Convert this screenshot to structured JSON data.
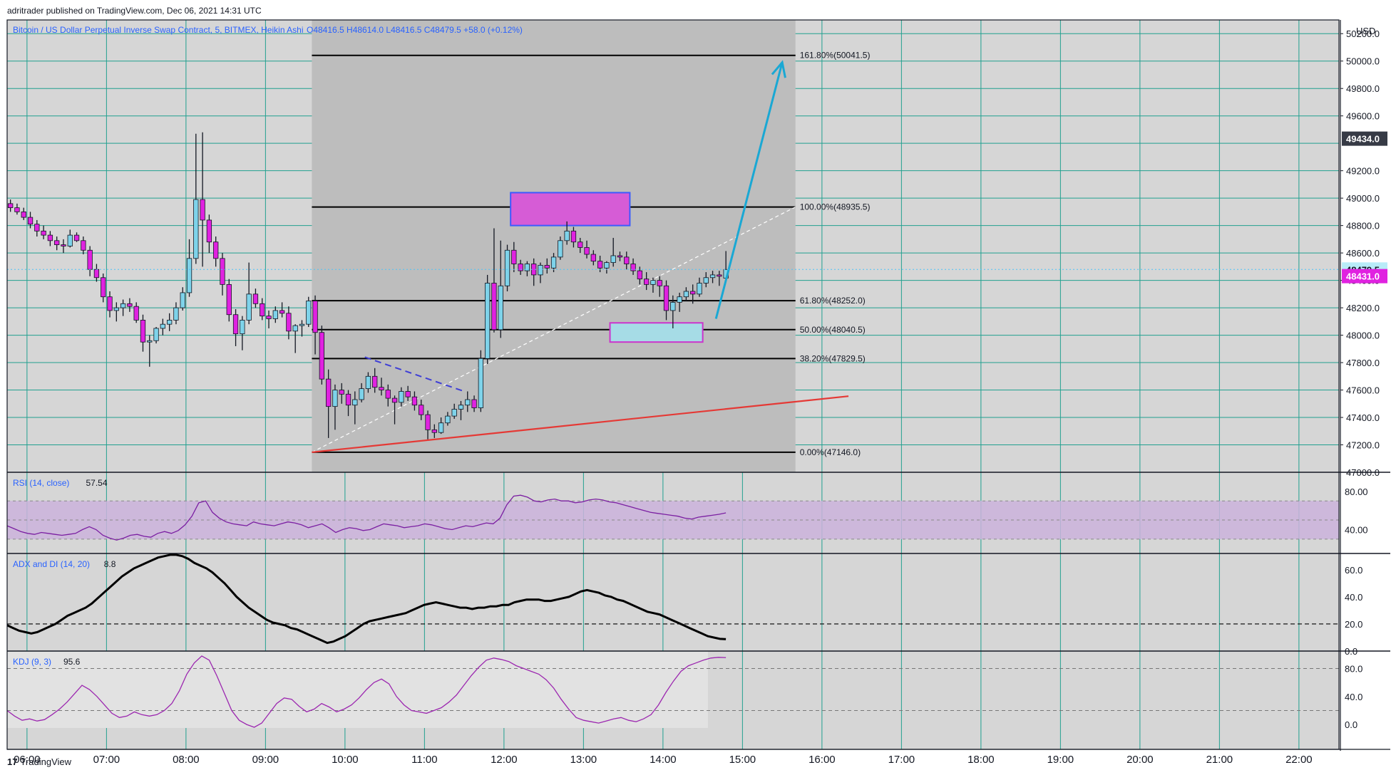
{
  "header": {
    "published": "adritrader published on TradingView.com, Dec 06, 2021 14:31 UTC"
  },
  "footer": {
    "brand": "TradingView",
    "logo": "17"
  },
  "colors": {
    "bg": "#d6d6d6",
    "zone": "#bdbdbd",
    "grid": "#21a08f",
    "up": "#7ed3ea",
    "down": "#e022e0",
    "wick": "#131722",
    "trend": "#e53935",
    "arrow": "#1aa8d4",
    "rsi_band": "#cbb3dc",
    "rsi_line": "#7b1fa2",
    "kdj_line": "#9c27b0",
    "adx_line": "#000000",
    "tag_current": "#e022e0",
    "tag_last": "#b8ecf8",
    "tag_dark": "#363a45"
  },
  "chart_data": [
    {
      "type": "candlestick",
      "title": "Bitcoin / US Dollar Perpetual Inverse Swap Contract, 5, BITMEX, Heikin Ashi",
      "ohlc_text": "O48416.5  H48614.0  L48416.5  C48479.5  +58.0 (+0.12%)",
      "currency": "USD",
      "ylim": [
        47000,
        50300
      ],
      "y_ticks": [
        "47000.0",
        "47200.0",
        "47400.0",
        "47600.0",
        "47800.0",
        "48000.0",
        "48200.0",
        "48400.0",
        "48600.0",
        "48800.0",
        "49000.0",
        "49200.0",
        "49600.0",
        "49800.0",
        "50000.0",
        "50200.0"
      ],
      "x_ticks": [
        "06:00",
        "07:00",
        "08:00",
        "09:00",
        "10:00",
        "11:00",
        "12:00",
        "13:00",
        "14:00",
        "15:00",
        "16:00",
        "17:00",
        "18:00",
        "19:00",
        "20:00",
        "21:00",
        "22:00"
      ],
      "x_start": "05:45",
      "bar_minutes": 5,
      "price_tags": [
        {
          "label": "49434.0",
          "value": 49434.0,
          "style": "dark"
        },
        {
          "label": "48479.5",
          "value": 48479.5,
          "style": "last"
        },
        {
          "label": "48431.0",
          "value": 48431.0,
          "style": "current"
        }
      ],
      "fib_levels": [
        {
          "label": "161.80%(50041.5)",
          "price": 50041.5
        },
        {
          "label": "100.00%(48935.5)",
          "price": 48935.5
        },
        {
          "label": "61.80%(48252.0)",
          "price": 48252.0
        },
        {
          "label": "50.00%(48040.5)",
          "price": 48040.5
        },
        {
          "label": "38.20%(47829.5)",
          "price": 47829.5
        },
        {
          "label": "0.00%(47146.0)",
          "price": 47146.0
        }
      ],
      "fib_zone": {
        "start": "09:35",
        "end": "15:40"
      },
      "annotations": {
        "supply_box": {
          "t1": "12:05",
          "t2": "13:35",
          "p1": 49040,
          "p2": 48800
        },
        "demand_box": {
          "t1": "13:20",
          "t2": "14:30",
          "p1": 48090,
          "p2": 47950
        },
        "trendline": {
          "t1": "09:35",
          "p1": 47146,
          "t2": "16:20",
          "p2": 47555
        },
        "dashed_line": {
          "t1": "10:15",
          "p1": 47840,
          "t2": "11:30",
          "p2": 47590
        },
        "diagonal": {
          "t1": "09:35",
          "p1": 47146,
          "t2": "15:40",
          "p2": 48935.5
        },
        "arrow": {
          "t1": "14:40",
          "p1": 48120,
          "t2": "15:30",
          "p2": 49990
        }
      },
      "candles": [
        [
          48960,
          48990,
          48900,
          48930
        ],
        [
          48930,
          48960,
          48880,
          48900
        ],
        [
          48900,
          48930,
          48840,
          48860
        ],
        [
          48860,
          48900,
          48780,
          48810
        ],
        [
          48810,
          48840,
          48720,
          48760
        ],
        [
          48760,
          48800,
          48700,
          48730
        ],
        [
          48730,
          48760,
          48650,
          48690
        ],
        [
          48690,
          48720,
          48620,
          48660
        ],
        [
          48660,
          48700,
          48600,
          48650
        ],
        [
          48650,
          48770,
          48640,
          48730
        ],
        [
          48730,
          48750,
          48680,
          48690
        ],
        [
          48690,
          48720,
          48590,
          48620
        ],
        [
          48620,
          48650,
          48430,
          48480
        ],
        [
          48480,
          48520,
          48390,
          48420
        ],
        [
          48420,
          48450,
          48240,
          48280
        ],
        [
          48280,
          48320,
          48130,
          48180
        ],
        [
          48180,
          48240,
          48100,
          48200
        ],
        [
          48200,
          48260,
          48140,
          48230
        ],
        [
          48230,
          48270,
          48170,
          48210
        ],
        [
          48210,
          48240,
          48090,
          48110
        ],
        [
          48110,
          48150,
          47880,
          47950
        ],
        [
          47950,
          48000,
          47770,
          47960
        ],
        [
          47960,
          48060,
          47940,
          48050
        ],
        [
          48050,
          48120,
          48000,
          48080
        ],
        [
          48080,
          48160,
          48030,
          48110
        ],
        [
          48110,
          48240,
          48080,
          48200
        ],
        [
          48200,
          48350,
          48180,
          48310
        ],
        [
          48310,
          48700,
          48280,
          48560
        ],
        [
          48560,
          49470,
          48520,
          48990
        ],
        [
          48990,
          49480,
          48500,
          48840
        ],
        [
          48840,
          48880,
          48600,
          48680
        ],
        [
          48680,
          48720,
          48500,
          48560
        ],
        [
          48560,
          48600,
          48290,
          48370
        ],
        [
          48370,
          48410,
          48100,
          48150
        ],
        [
          48150,
          48190,
          47920,
          48010
        ],
        [
          48010,
          48140,
          47890,
          48110
        ],
        [
          48110,
          48530,
          48080,
          48300
        ],
        [
          48300,
          48340,
          48200,
          48230
        ],
        [
          48230,
          48270,
          48110,
          48140
        ],
        [
          48140,
          48180,
          48050,
          48120
        ],
        [
          48120,
          48210,
          48090,
          48180
        ],
        [
          48180,
          48240,
          48130,
          48160
        ],
        [
          48160,
          48210,
          47970,
          48030
        ],
        [
          48030,
          48080,
          47870,
          48070
        ],
        [
          48070,
          48110,
          47990,
          48080
        ],
        [
          48080,
          48280,
          48060,
          48250
        ],
        [
          48250,
          48290,
          47860,
          48020
        ],
        [
          48020,
          48070,
          47640,
          47680
        ],
        [
          47680,
          47750,
          47250,
          47480
        ],
        [
          47480,
          47640,
          47310,
          47600
        ],
        [
          47600,
          47650,
          47500,
          47570
        ],
        [
          47570,
          47600,
          47410,
          47490
        ],
        [
          47490,
          47590,
          47350,
          47530
        ],
        [
          47530,
          47650,
          47510,
          47610
        ],
        [
          47610,
          47730,
          47580,
          47700
        ],
        [
          47700,
          47760,
          47580,
          47620
        ],
        [
          47620,
          47690,
          47560,
          47600
        ],
        [
          47600,
          47640,
          47480,
          47540
        ],
        [
          47540,
          47560,
          47350,
          47510
        ],
        [
          47510,
          47620,
          47480,
          47590
        ],
        [
          47590,
          47630,
          47520,
          47550
        ],
        [
          47550,
          47590,
          47450,
          47490
        ],
        [
          47490,
          47530,
          47380,
          47420
        ],
        [
          47420,
          47450,
          47240,
          47310
        ],
        [
          47310,
          47350,
          47250,
          47290
        ],
        [
          47290,
          47400,
          47280,
          47360
        ],
        [
          47360,
          47440,
          47340,
          47410
        ],
        [
          47410,
          47500,
          47390,
          47460
        ],
        [
          47460,
          47520,
          47380,
          47490
        ],
        [
          47490,
          47590,
          47440,
          47530
        ],
        [
          47530,
          47560,
          47440,
          47470
        ],
        [
          47470,
          47890,
          47440,
          47830
        ],
        [
          47830,
          48440,
          47790,
          48380
        ],
        [
          48380,
          48780,
          48020,
          48040
        ],
        [
          48040,
          48690,
          47980,
          48360
        ],
        [
          48360,
          48660,
          48320,
          48620
        ],
        [
          48620,
          48680,
          48460,
          48520
        ],
        [
          48520,
          48550,
          48440,
          48470
        ],
        [
          48470,
          48540,
          48430,
          48520
        ],
        [
          48520,
          48560,
          48360,
          48440
        ],
        [
          48440,
          48530,
          48380,
          48510
        ],
        [
          48510,
          48560,
          48450,
          48490
        ],
        [
          48490,
          48600,
          48460,
          48570
        ],
        [
          48570,
          48720,
          48550,
          48690
        ],
        [
          48690,
          48830,
          48660,
          48760
        ],
        [
          48760,
          48790,
          48640,
          48680
        ],
        [
          48680,
          48710,
          48600,
          48640
        ],
        [
          48640,
          48690,
          48560,
          48590
        ],
        [
          48590,
          48620,
          48510,
          48540
        ],
        [
          48540,
          48580,
          48460,
          48490
        ],
        [
          48490,
          48540,
          48450,
          48530
        ],
        [
          48530,
          48710,
          48500,
          48580
        ],
        [
          48580,
          48610,
          48540,
          48570
        ],
        [
          48570,
          48610,
          48480,
          48520
        ],
        [
          48520,
          48560,
          48440,
          48470
        ],
        [
          48470,
          48500,
          48370,
          48410
        ],
        [
          48410,
          48460,
          48330,
          48370
        ],
        [
          48370,
          48420,
          48310,
          48400
        ],
        [
          48400,
          48430,
          48280,
          48360
        ],
        [
          48360,
          48400,
          48110,
          48180
        ],
        [
          48180,
          48290,
          48050,
          48240
        ],
        [
          48240,
          48310,
          48170,
          48280
        ],
        [
          48280,
          48350,
          48250,
          48320
        ],
        [
          48320,
          48370,
          48230,
          48300
        ],
        [
          48300,
          48420,
          48280,
          48380
        ],
        [
          48380,
          48460,
          48350,
          48420
        ],
        [
          48420,
          48470,
          48380,
          48440
        ],
        [
          48440,
          48470,
          48360,
          48430
        ],
        [
          48416.5,
          48614,
          48416.5,
          48479.5
        ]
      ]
    },
    {
      "type": "line",
      "title": "RSI (14, close)",
      "value_label": "57.54",
      "ylim": [
        15,
        100
      ],
      "y_ticks": [
        "40.00",
        "80.00"
      ],
      "band": [
        30,
        70
      ],
      "values": [
        44,
        41,
        38,
        36,
        35,
        37,
        36,
        35,
        34,
        35,
        36,
        40,
        43,
        40,
        34,
        31,
        29,
        31,
        34,
        35,
        33,
        32,
        36,
        38,
        36,
        39,
        45,
        54,
        68,
        70,
        58,
        52,
        48,
        46,
        45,
        44,
        48,
        46,
        45,
        44,
        46,
        48,
        47,
        45,
        42,
        44,
        46,
        42,
        37,
        40,
        42,
        41,
        39,
        40,
        43,
        46,
        45,
        44,
        42,
        43,
        44,
        46,
        45,
        43,
        41,
        40,
        42,
        44,
        43,
        45,
        47,
        46,
        52,
        66,
        75,
        76,
        74,
        70,
        69,
        71,
        72,
        70,
        70,
        68,
        69,
        71,
        72,
        71,
        69,
        68,
        66,
        64,
        62,
        60,
        58,
        57,
        56,
        55,
        54,
        52,
        51,
        53,
        54,
        55,
        56,
        57.5
      ]
    },
    {
      "type": "line",
      "title": "ADX and DI (14, 20)",
      "value_label": "8.8",
      "ylim": [
        0,
        72
      ],
      "y_ticks": [
        "0.0",
        "20.0",
        "40.0",
        "60.0"
      ],
      "dashed_level": 20,
      "values": [
        19,
        17,
        15,
        14,
        13,
        14,
        16,
        18,
        20,
        23,
        26,
        28,
        30,
        32,
        35,
        39,
        43,
        47,
        51,
        55,
        58,
        61,
        63,
        65,
        67,
        69,
        70,
        71,
        71,
        70,
        68,
        65,
        63,
        61,
        58,
        54,
        50,
        45,
        40,
        36,
        32,
        29,
        26,
        23,
        21,
        20,
        19,
        17,
        16,
        14,
        12,
        10,
        8,
        6,
        7,
        9,
        11,
        14,
        17,
        20,
        22,
        23,
        24,
        25,
        26,
        27,
        28,
        30,
        32,
        34,
        35,
        36,
        35,
        34,
        33,
        32,
        32,
        31,
        32,
        32,
        33,
        33,
        34,
        34,
        36,
        37,
        38,
        38,
        38,
        37,
        37,
        38,
        39,
        40,
        42,
        44,
        45,
        44,
        43,
        41,
        40,
        38,
        37,
        35,
        33,
        31,
        29,
        28,
        27,
        25,
        23,
        21,
        19,
        17,
        15,
        13,
        11,
        10,
        9,
        8.8
      ]
    },
    {
      "type": "line",
      "title": "KDJ (9, 3)",
      "value_label": "95.6",
      "ylim": [
        -5,
        105
      ],
      "y_ticks": [
        "0.0",
        "40.0",
        "80.0"
      ],
      "dashed_levels": [
        20,
        80
      ],
      "values": [
        20,
        12,
        6,
        8,
        5,
        7,
        14,
        22,
        32,
        44,
        56,
        50,
        40,
        28,
        16,
        10,
        12,
        18,
        14,
        12,
        14,
        20,
        30,
        48,
        72,
        88,
        98,
        92,
        70,
        45,
        20,
        6,
        0,
        -4,
        2,
        16,
        30,
        38,
        36,
        26,
        18,
        22,
        30,
        25,
        18,
        22,
        28,
        38,
        50,
        60,
        65,
        58,
        40,
        28,
        20,
        18,
        16,
        20,
        24,
        32,
        42,
        56,
        70,
        82,
        92,
        95,
        93,
        90,
        84,
        80,
        76,
        72,
        64,
        52,
        36,
        22,
        10,
        6,
        4,
        2,
        5,
        8,
        10,
        6,
        4,
        8,
        14,
        28,
        46,
        62,
        76,
        84,
        88,
        92,
        95,
        96,
        95.6
      ]
    }
  ]
}
